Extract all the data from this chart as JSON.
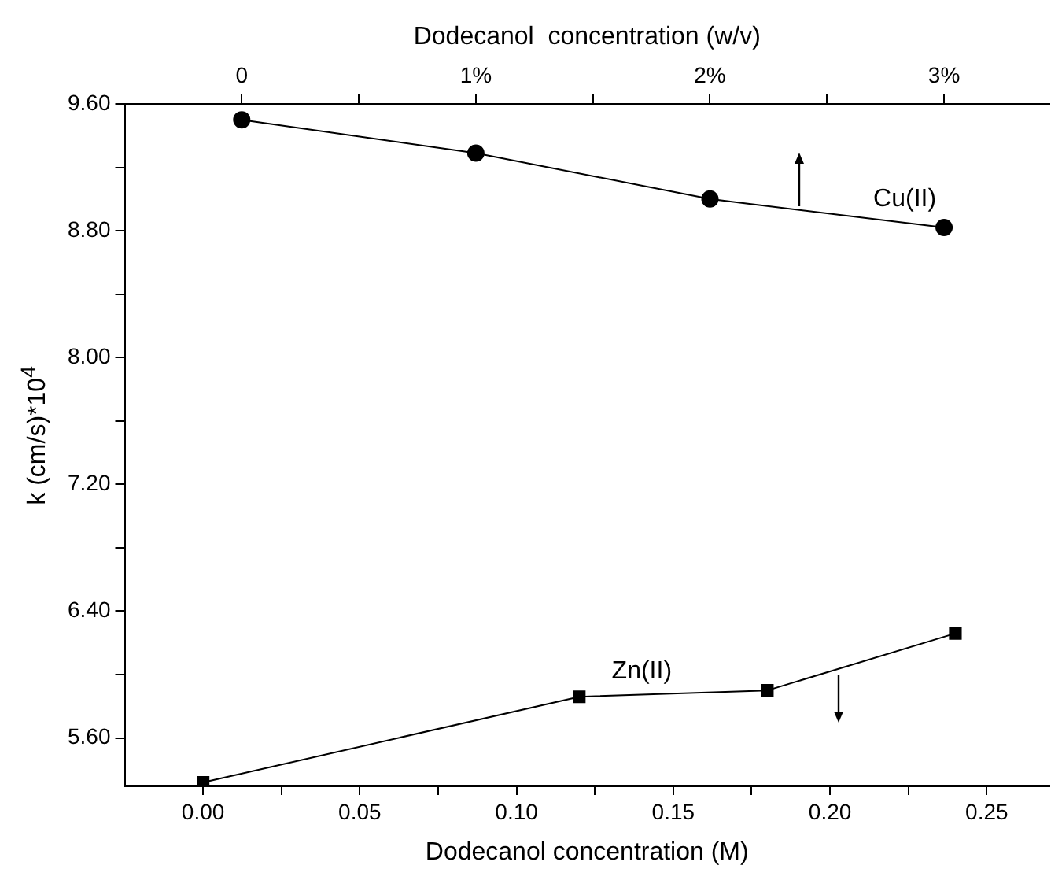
{
  "chart_data": {
    "type": "line",
    "xlabel": "Dodecanol concentration (M)",
    "x2label": "Dodecanol  concentration (w/v)",
    "ylabel": "k (cm/s)*10$^{4}$",
    "xlim": [
      -0.025,
      0.27
    ],
    "xticks": [
      {
        "value": 0,
        "label": "0.00"
      },
      {
        "value": 0.025,
        "label": null
      },
      {
        "value": 0.05,
        "label": "0.05"
      },
      {
        "value": 0.075,
        "label": null
      },
      {
        "value": 0.1,
        "label": "0.10"
      },
      {
        "value": 0.125,
        "label": null
      },
      {
        "value": 0.15,
        "label": "0.15"
      },
      {
        "value": 0.175,
        "label": null
      },
      {
        "value": 0.2,
        "label": "0.20"
      },
      {
        "value": 0.225,
        "label": null
      },
      {
        "value": 0.25,
        "label": "0.25"
      }
    ],
    "x2lim": [
      -0.5,
      3.45
    ],
    "x2ticks": [
      {
        "value": 0,
        "label": "0"
      },
      {
        "value": 0.5,
        "label": null
      },
      {
        "value": 1,
        "label": "1%"
      },
      {
        "value": 1.5,
        "label": null
      },
      {
        "value": 2,
        "label": "2%"
      },
      {
        "value": 2.5,
        "label": null
      },
      {
        "value": 3,
        "label": "3%"
      }
    ],
    "ylim": [
      5.3,
      9.6
    ],
    "yticks": [
      {
        "value": 5.6,
        "label": "5.60"
      },
      {
        "value": 6.0,
        "label": null
      },
      {
        "value": 6.4,
        "label": "6.40"
      },
      {
        "value": 6.8,
        "label": null
      },
      {
        "value": 7.2,
        "label": "7.20"
      },
      {
        "value": 7.6,
        "label": null
      },
      {
        "value": 8.0,
        "label": "8.00"
      },
      {
        "value": 8.4,
        "label": null
      },
      {
        "value": 8.8,
        "label": "8.80"
      },
      {
        "value": 9.2,
        "label": null
      },
      {
        "value": 9.6,
        "label": "9.60"
      }
    ],
    "grid": false,
    "legend": false,
    "line_style": "solid",
    "series": [
      {
        "name": "Cu(II)",
        "axis": "x2",
        "marker": "circle",
        "color": "#000000",
        "x": [
          0,
          1,
          2,
          3
        ],
        "values": [
          9.5,
          9.29,
          9.0,
          8.82
        ]
      },
      {
        "name": "Zn(II)",
        "marker": "square",
        "color": "#000000",
        "x": [
          0,
          0.12,
          0.18,
          0.24
        ],
        "values": [
          5.32,
          5.86,
          5.9,
          6.26
        ]
      }
    ]
  }
}
